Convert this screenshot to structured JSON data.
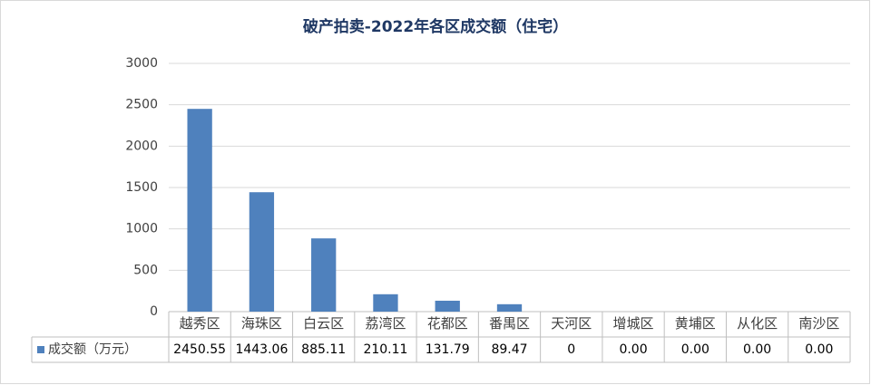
{
  "chart_data": {
    "type": "bar",
    "title": "破产拍卖-2022年各区成交额（住宅）",
    "categories": [
      "越秀区",
      "海珠区",
      "白云区",
      "荔湾区",
      "花都区",
      "番禺区",
      "天河区",
      "增城区",
      "黄埔区",
      "从化区",
      "南沙区"
    ],
    "series": [
      {
        "name": "成交额（万元）",
        "color": "#4f81bd",
        "values": [
          2450.55,
          1443.06,
          885.11,
          210.11,
          131.79,
          89.47,
          0,
          0,
          0,
          0,
          0
        ],
        "value_labels": [
          "2450.55",
          "1443.06",
          "885.11",
          "210.11",
          "131.79",
          "89.47",
          "0",
          "0.00",
          "0.00",
          "0.00",
          "0.00"
        ]
      }
    ],
    "ylim": [
      0,
      3000
    ],
    "yticks": [
      0,
      500,
      1000,
      1500,
      2000,
      2500,
      3000
    ],
    "grid": true
  }
}
